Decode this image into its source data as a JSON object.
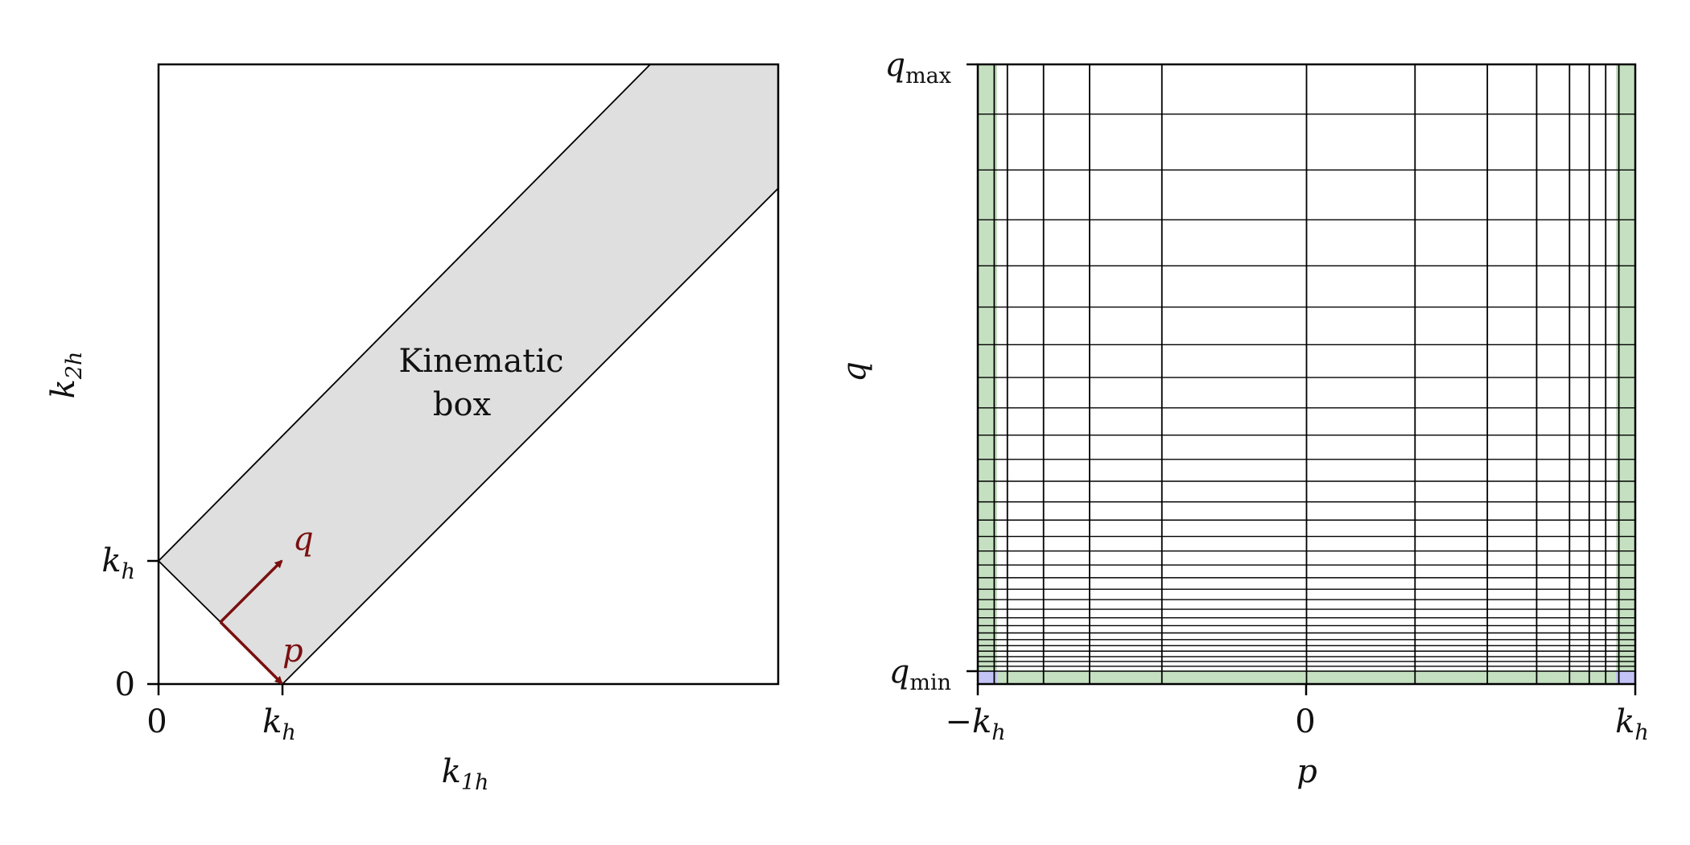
{
  "colors": {
    "band_fill": "#dfdfdf",
    "arrow": "#7a0f0f",
    "green_strip": "#c5e0c1",
    "blue_corner": "#c3c3f5",
    "line": "#000000"
  },
  "left_panel": {
    "xlabel": {
      "base": "k",
      "sub": "1h"
    },
    "ylabel": {
      "base": "k",
      "sub": "2h"
    },
    "x_ticks": [
      {
        "value": 0,
        "label": {
          "base": "0",
          "sub": ""
        }
      },
      {
        "value": 1,
        "label": {
          "base": "k",
          "sub": "h"
        }
      }
    ],
    "y_ticks": [
      {
        "value": 0,
        "label": {
          "base": "0",
          "sub": ""
        }
      },
      {
        "value": 1,
        "label": {
          "base": "k",
          "sub": "h"
        }
      }
    ],
    "xlim": [
      0,
      5
    ],
    "ylim": [
      0,
      5
    ],
    "annotation": [
      "Kinematic",
      "box"
    ],
    "vectors": [
      {
        "label": "q",
        "from": [
          0.5,
          0.5
        ],
        "to": [
          1.0,
          1.0
        ]
      },
      {
        "label": "p",
        "from": [
          0.5,
          0.5
        ],
        "to": [
          1.0,
          0.0
        ]
      }
    ]
  },
  "right_panel": {
    "xlabel": "p",
    "ylabel": "q",
    "x_ticks": [
      {
        "value": -1,
        "label": {
          "base": "−k",
          "sub": "h"
        }
      },
      {
        "value": 0,
        "label": {
          "base": "0",
          "sub": ""
        }
      },
      {
        "value": 1,
        "label": {
          "base": "k",
          "sub": "h"
        }
      }
    ],
    "y_ticks": [
      {
        "value": 0,
        "label": {
          "base": "q",
          "sub": "min"
        }
      },
      {
        "value": 1,
        "label": {
          "base": "q",
          "sub": "max"
        }
      }
    ],
    "xlim": [
      -1,
      1
    ],
    "ylim": [
      -0.02,
      1
    ],
    "grid_p": [
      -0.95,
      -0.91,
      -0.8,
      -0.66,
      -0.44,
      0.0,
      0.33,
      0.55,
      0.7,
      0.8,
      0.86,
      0.91,
      0.95
    ],
    "grid_q": [
      0.0,
      0.008,
      0.016,
      0.024,
      0.033,
      0.042,
      0.052,
      0.063,
      0.075,
      0.088,
      0.102,
      0.118,
      0.135,
      0.154,
      0.175,
      0.198,
      0.222,
      0.249,
      0.279,
      0.313,
      0.349,
      0.389,
      0.434,
      0.484,
      0.538,
      0.6,
      0.668,
      0.744,
      0.826,
      0.918,
      1.0
    ]
  }
}
